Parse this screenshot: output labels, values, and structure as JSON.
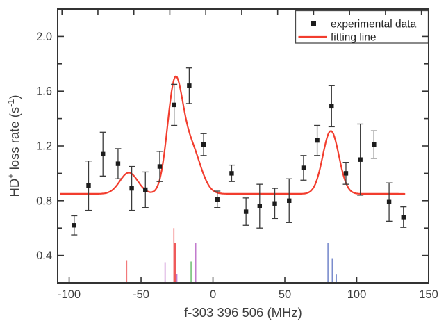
{
  "figure": {
    "background": "#ffffff"
  },
  "chart_data": {
    "type": "scatter",
    "title": "",
    "xlabel": "f-303 396 506 (MHz)",
    "ylabel_segments": [
      {
        "text": "HD"
      },
      {
        "text": "+",
        "sup": true
      },
      {
        "text": " loss rate (s"
      },
      {
        "text": "-1",
        "sup": true
      },
      {
        "text": ")"
      }
    ],
    "xlim": [
      -108,
      150
    ],
    "ylim": [
      0.2,
      2.2
    ],
    "xticks": [
      -100,
      -50,
      0,
      50,
      100,
      150
    ],
    "xtick_labels": [
      "-100",
      "-50",
      "0",
      "50",
      "100",
      "150"
    ],
    "xticks_top": [
      -105,
      -80,
      -55,
      -30,
      -5,
      20,
      45,
      70,
      95,
      120,
      145
    ],
    "yticks": [
      0.4,
      0.8,
      1.2,
      1.6,
      2.0
    ],
    "ytick_labels": [
      "0.4",
      "0.8",
      "1.2",
      "1.6",
      "2.0"
    ],
    "yticks_minor": [
      0.6,
      1.0,
      1.4,
      1.8
    ],
    "frame_color": "#333333",
    "text_color": "#3d3d3d",
    "legend": {
      "position": "top-right",
      "entries": [
        {
          "label": "experimental data",
          "marker": "square",
          "color": "#1c1c1c"
        },
        {
          "label": "fitting line",
          "marker": "line",
          "color": "#f23d2e"
        }
      ]
    },
    "series": [
      {
        "name": "experimental data",
        "type": "scatter-errorbar",
        "marker": "square",
        "marker_color": "#1c1c1c",
        "errorbar_color": "#3a3a3a",
        "points": [
          {
            "x": -96.5,
            "y": 0.62,
            "err": 0.07
          },
          {
            "x": -86.5,
            "y": 0.91,
            "err": 0.18
          },
          {
            "x": -76.5,
            "y": 1.14,
            "err": 0.16
          },
          {
            "x": -66.0,
            "y": 1.07,
            "err": 0.11
          },
          {
            "x": -56.5,
            "y": 0.89,
            "err": 0.16
          },
          {
            "x": -47.0,
            "y": 0.88,
            "err": 0.13
          },
          {
            "x": -37.0,
            "y": 1.05,
            "err": 0.11
          },
          {
            "x": -27.0,
            "y": 1.5,
            "err": 0.15
          },
          {
            "x": -16.5,
            "y": 1.64,
            "err": 0.13
          },
          {
            "x": -6.5,
            "y": 1.21,
            "err": 0.08
          },
          {
            "x": 3.0,
            "y": 0.81,
            "err": 0.06
          },
          {
            "x": 13.0,
            "y": 1.0,
            "err": 0.06
          },
          {
            "x": 23.0,
            "y": 0.72,
            "err": 0.1
          },
          {
            "x": 32.5,
            "y": 0.76,
            "err": 0.16
          },
          {
            "x": 43.0,
            "y": 0.78,
            "err": 0.11
          },
          {
            "x": 53.0,
            "y": 0.8,
            "err": 0.16
          },
          {
            "x": 63.0,
            "y": 1.04,
            "err": 0.09
          },
          {
            "x": 72.5,
            "y": 1.24,
            "err": 0.11
          },
          {
            "x": 82.5,
            "y": 1.49,
            "err": 0.15
          },
          {
            "x": 92.5,
            "y": 1.0,
            "err": 0.08
          },
          {
            "x": 102.5,
            "y": 1.1,
            "err": 0.26
          },
          {
            "x": 112.0,
            "y": 1.21,
            "err": 0.1
          },
          {
            "x": 122.5,
            "y": 0.79,
            "err": 0.14
          },
          {
            "x": 132.5,
            "y": 0.68,
            "err": 0.075
          }
        ]
      },
      {
        "name": "fitting line",
        "type": "fit-curve",
        "color": "#f23d2e",
        "baseline": 0.85,
        "x_range": [
          -106,
          133.5
        ],
        "gaussian_components": [
          {
            "center": -58.5,
            "amplitude": 0.155,
            "sigma": 6.2
          },
          {
            "center": -26.6,
            "amplitude": 0.76,
            "sigma": 5.2
          },
          {
            "center": -15.5,
            "amplitude": 0.34,
            "sigma": 6.8
          },
          {
            "center": 82.0,
            "amplitude": 0.46,
            "sigma": 5.6
          }
        ]
      }
    ],
    "spectral_lines": [
      {
        "x": -60.0,
        "top": 0.365,
        "color": "#f2797a",
        "width": 1.6
      },
      {
        "x": -33.3,
        "top": 0.35,
        "color": "#c27bce",
        "width": 1.6
      },
      {
        "x": -27.2,
        "top": 0.6,
        "color": "#f59596",
        "width": 1.8
      },
      {
        "x": -26.4,
        "top": 0.49,
        "color": "#ef5a5a",
        "width": 3
      },
      {
        "x": -25.1,
        "top": 0.265,
        "color": "#c27bce",
        "width": 1.6
      },
      {
        "x": -15.2,
        "top": 0.355,
        "color": "#74c178",
        "width": 1.6
      },
      {
        "x": -12.0,
        "top": 0.49,
        "color": "#c27bce",
        "width": 1.6
      },
      {
        "x": 80.0,
        "top": 0.49,
        "color": "#7a8ccd",
        "width": 1.6
      },
      {
        "x": 83.0,
        "top": 0.38,
        "color": "#7a8ccd",
        "width": 1.6
      },
      {
        "x": 85.8,
        "top": 0.26,
        "color": "#7a8ccd",
        "width": 1.6
      }
    ]
  }
}
